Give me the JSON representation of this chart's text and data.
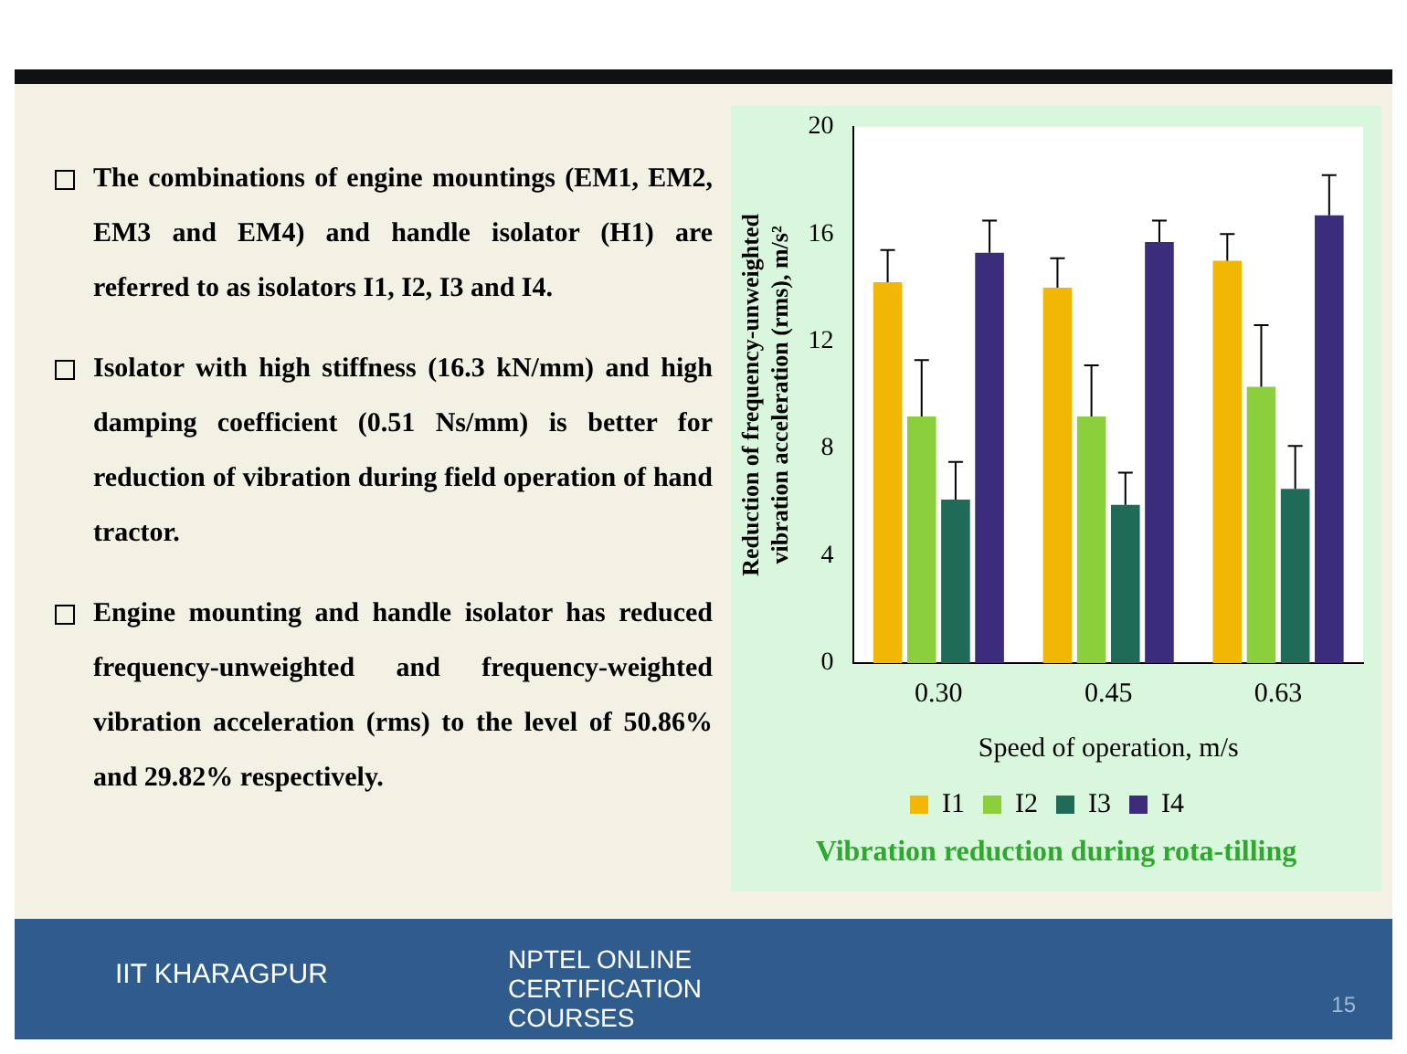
{
  "chart_data": {
    "type": "bar",
    "title": "Vibration reduction during rota-tilling",
    "xlabel": "Speed of operation, m/s",
    "ylabel": "Reduction of frequency-unweighted vibration acceleration (rms), m/s²",
    "categories": [
      "0.30",
      "0.45",
      "0.63"
    ],
    "series": [
      {
        "name": "I1",
        "color": "#f2b705",
        "values": [
          14.2,
          14.0,
          15.0
        ],
        "errors": [
          [
            14.2,
            15.4
          ],
          [
            14.0,
            15.1
          ],
          [
            15.0,
            16.0
          ]
        ]
      },
      {
        "name": "I2",
        "color": "#8ccf3c",
        "values": [
          9.2,
          9.2,
          10.3
        ],
        "errors": [
          [
            9.2,
            11.3
          ],
          [
            9.2,
            11.1
          ],
          [
            10.3,
            12.6
          ]
        ]
      },
      {
        "name": "I3",
        "color": "#1f6b58",
        "values": [
          6.1,
          5.9,
          6.5
        ],
        "errors": [
          [
            6.1,
            7.5
          ],
          [
            5.9,
            7.1
          ],
          [
            6.5,
            8.1
          ]
        ]
      },
      {
        "name": "I4",
        "color": "#3b2c7c",
        "values": [
          15.3,
          15.7,
          16.7
        ],
        "errors": [
          [
            15.3,
            16.5
          ],
          [
            15.7,
            16.5
          ],
          [
            16.7,
            18.2
          ]
        ]
      }
    ],
    "ylim": [
      0,
      20
    ],
    "yticks": [
      0,
      4,
      8,
      12,
      16,
      20
    ],
    "grid": false,
    "legend": "bottom",
    "annotations": [
      "The combinations of engine mountings (EM1, EM2, EM3 and EM4) and handle isolator (H1) are referred to as isolators I1, I2, I3 and I4.",
      "Isolator with high stiffness (16.3 kN/mm) and high damping coefficient (0.51 Ns/mm) is better for reduction of vibration during field operation of hand tractor.",
      "Engine mounting and handle isolator has reduced frequency-unweighted and frequency-weighted vibration acceleration (rms) to the level of 50.86% and 29.82% respectively.",
      "IIT KHARAGPUR",
      "NPTEL ONLINE CERTIFICATION COURSES",
      "15"
    ]
  }
}
